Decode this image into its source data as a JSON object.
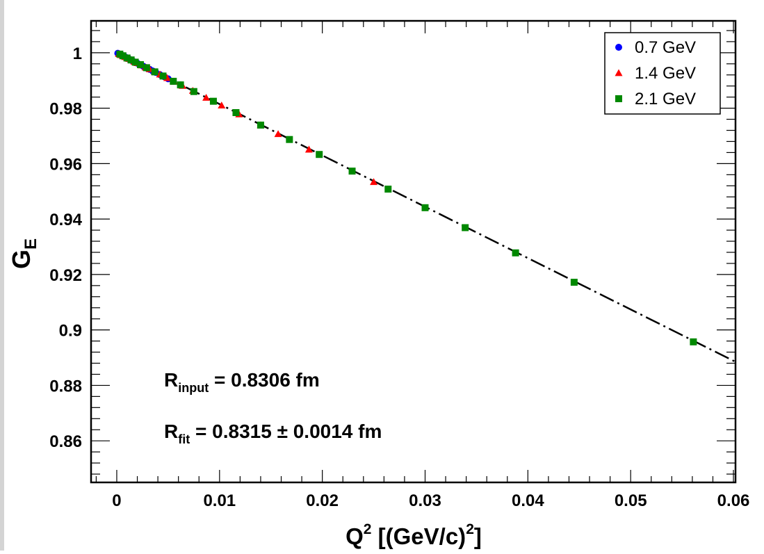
{
  "chart_data": {
    "type": "scatter",
    "xlabel": {
      "base": "Q",
      "sup": "2",
      "unit_open": " [(GeV/c)",
      "unit_sup": "2",
      "unit_close": "]"
    },
    "ylabel": {
      "base": "G",
      "sub": "E"
    },
    "xlim": [
      -0.0025,
      0.0602
    ],
    "ylim": [
      0.845,
      1.0115
    ],
    "x_ticks": [
      0,
      0.01,
      0.02,
      0.03,
      0.04,
      0.05,
      0.06
    ],
    "x_tick_labels": [
      "0",
      "0.01",
      "0.02",
      "0.03",
      "0.04",
      "0.05",
      "0.06"
    ],
    "y_ticks": [
      0.86,
      0.88,
      0.9,
      0.92,
      0.94,
      0.96,
      0.98,
      1.0
    ],
    "y_tick_labels": [
      "0.86",
      "0.88",
      "0.9",
      "0.92",
      "0.94",
      "0.96",
      "0.98",
      "1"
    ],
    "grid": false,
    "legend_position": "top-right",
    "series": [
      {
        "name": "0.7 GeV",
        "marker": "circle",
        "color": "#0000ff",
        "points": [
          [
            0.0001,
            0.9998
          ],
          [
            0.0002,
            0.9996
          ],
          [
            0.0003,
            0.9994
          ],
          [
            0.0004,
            0.9993
          ],
          [
            0.0005,
            0.9991
          ],
          [
            0.0006,
            0.9989
          ],
          [
            0.0007,
            0.9987
          ],
          [
            0.0008,
            0.9985
          ],
          [
            0.0009,
            0.9983
          ],
          [
            0.001,
            0.9981
          ],
          [
            0.0011,
            0.9979
          ],
          [
            0.0012,
            0.9977
          ],
          [
            0.0013,
            0.9975
          ],
          [
            0.0014,
            0.9973
          ],
          [
            0.0015,
            0.9971
          ],
          [
            0.0016,
            0.9969
          ],
          [
            0.0018,
            0.9966
          ],
          [
            0.002,
            0.9962
          ],
          [
            0.0022,
            0.9958
          ],
          [
            0.0024,
            0.9955
          ],
          [
            0.0026,
            0.9951
          ],
          [
            0.0028,
            0.9947
          ],
          [
            0.003,
            0.9943
          ],
          [
            0.0032,
            0.994
          ],
          [
            0.0035,
            0.9934
          ],
          [
            0.0038,
            0.9929
          ],
          [
            0.0042,
            0.9921
          ],
          [
            0.0046,
            0.9914
          ],
          [
            0.005,
            0.9906
          ],
          [
            0.0055,
            0.9897
          ],
          [
            0.0062,
            0.9884
          ]
        ]
      },
      {
        "name": "1.4 GeV",
        "marker": "triangle",
        "color": "#ff0000",
        "points": [
          [
            0.0002,
            0.9996
          ],
          [
            0.0004,
            0.9992
          ],
          [
            0.0006,
            0.9989
          ],
          [
            0.0008,
            0.9985
          ],
          [
            0.001,
            0.9981
          ],
          [
            0.0012,
            0.9978
          ],
          [
            0.0014,
            0.9974
          ],
          [
            0.0017,
            0.9968
          ],
          [
            0.002,
            0.9963
          ],
          [
            0.0024,
            0.9955
          ],
          [
            0.0028,
            0.9947
          ],
          [
            0.0032,
            0.9941
          ],
          [
            0.0037,
            0.9931
          ],
          [
            0.0042,
            0.9922
          ],
          [
            0.0049,
            0.9909
          ],
          [
            0.0056,
            0.9896
          ],
          [
            0.0064,
            0.9881
          ],
          [
            0.0074,
            0.9863
          ],
          [
            0.0087,
            0.9838
          ],
          [
            0.0102,
            0.981
          ],
          [
            0.0119,
            0.9778
          ],
          [
            0.014,
            0.9739
          ],
          [
            0.0157,
            0.9707
          ],
          [
            0.0187,
            0.9651
          ],
          [
            0.025,
            0.9534
          ]
        ]
      },
      {
        "name": "2.1 GeV",
        "marker": "square",
        "color": "#008800",
        "points": [
          [
            0.0003,
            0.9995
          ],
          [
            0.0006,
            0.9989
          ],
          [
            0.001,
            0.9981
          ],
          [
            0.0014,
            0.9974
          ],
          [
            0.0018,
            0.9966
          ],
          [
            0.0023,
            0.9957
          ],
          [
            0.0029,
            0.9946
          ],
          [
            0.0037,
            0.9931
          ],
          [
            0.0045,
            0.9916
          ],
          [
            0.0055,
            0.9897
          ],
          [
            0.0062,
            0.9884
          ],
          [
            0.0075,
            0.986
          ],
          [
            0.0094,
            0.9825
          ],
          [
            0.0116,
            0.9784
          ],
          [
            0.014,
            0.9739
          ],
          [
            0.0168,
            0.9687
          ],
          [
            0.0197,
            0.9633
          ],
          [
            0.0229,
            0.9573
          ],
          [
            0.0264,
            0.9508
          ],
          [
            0.03,
            0.9441
          ],
          [
            0.0339,
            0.9369
          ],
          [
            0.0388,
            0.9278
          ],
          [
            0.0445,
            0.9172
          ],
          [
            0.0561,
            0.8957
          ]
        ]
      }
    ],
    "fit_line": {
      "style": "dash-dot",
      "color": "#000000",
      "x0": 0,
      "y0": 1.0,
      "x1": 0.0602,
      "y1": 0.8885
    },
    "annotations": [
      {
        "main": "R",
        "sub": "input",
        "rest": " = 0.8306 fm"
      },
      {
        "main": "R",
        "sub": "fit",
        "rest": " = 0.8315 ± 0.0014 fm"
      }
    ]
  }
}
